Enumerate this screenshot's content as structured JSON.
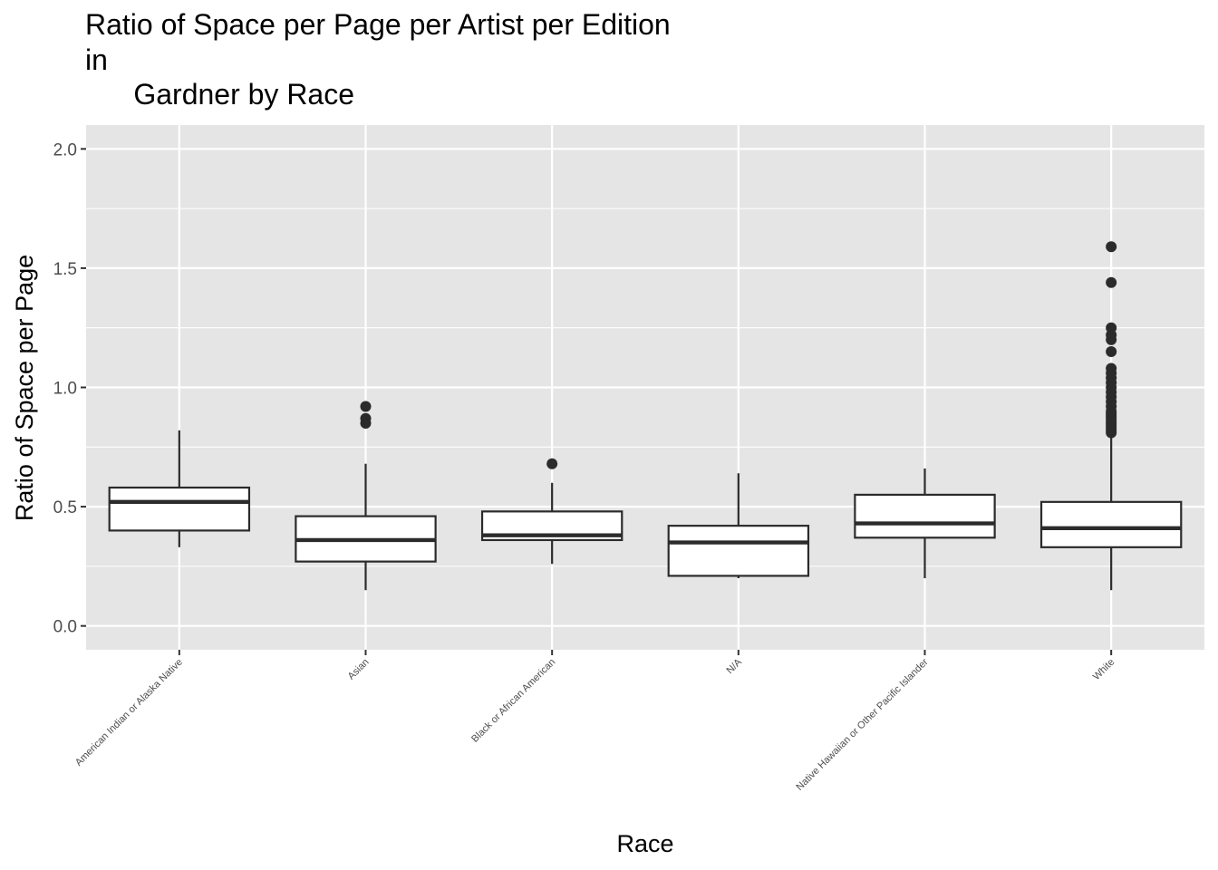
{
  "chart_data": {
    "type": "box",
    "title_lines": [
      "Ratio of Space per Page per Artist per Edition",
      "in",
      "      Gardner by Race"
    ],
    "xlabel": "Race",
    "ylabel": "Ratio of Space per Page",
    "ylim": [
      -0.1,
      2.1
    ],
    "yticks": [
      0.0,
      0.5,
      1.0,
      1.5,
      2.0
    ],
    "ytick_labels": [
      "0.0",
      "0.5",
      "1.0",
      "1.5",
      "2.0"
    ],
    "grid": true,
    "legend": "none",
    "colors": {
      "panel": "#e5e5e5",
      "grid": "#ffffff",
      "box_fill": "#ffffff",
      "box_line": "#2b2b2b",
      "tick_text": "#4d4d4d"
    },
    "categories": [
      "American Indian or Alaska Native",
      "Asian",
      "Black or African American",
      "N/A",
      "Native Hawaiian or Other Pacific Islander",
      "White"
    ],
    "boxes": [
      {
        "category": "American Indian or Alaska Native",
        "whisker_low": 0.33,
        "q1": 0.4,
        "median": 0.52,
        "q3": 0.58,
        "whisker_high": 0.82,
        "outliers": []
      },
      {
        "category": "Asian",
        "whisker_low": 0.15,
        "q1": 0.27,
        "median": 0.36,
        "q3": 0.46,
        "whisker_high": 0.68,
        "outliers": [
          0.85,
          0.87,
          0.92
        ]
      },
      {
        "category": "Black or African American",
        "whisker_low": 0.26,
        "q1": 0.36,
        "median": 0.38,
        "q3": 0.48,
        "whisker_high": 0.6,
        "outliers": [
          0.68
        ]
      },
      {
        "category": "N/A",
        "whisker_low": 0.2,
        "q1": 0.21,
        "median": 0.35,
        "q3": 0.42,
        "whisker_high": 0.64,
        "outliers": []
      },
      {
        "category": "Native Hawaiian or Other Pacific Islander",
        "whisker_low": 0.2,
        "q1": 0.37,
        "median": 0.43,
        "q3": 0.55,
        "whisker_high": 0.66,
        "outliers": []
      },
      {
        "category": "White",
        "whisker_low": 0.15,
        "q1": 0.33,
        "median": 0.41,
        "q3": 0.52,
        "whisker_high": 0.8,
        "outliers": [
          0.81,
          0.82,
          0.83,
          0.84,
          0.85,
          0.86,
          0.87,
          0.88,
          0.89,
          0.9,
          0.92,
          0.94,
          0.96,
          0.98,
          1.0,
          1.02,
          1.04,
          1.06,
          1.08,
          1.15,
          1.2,
          1.22,
          1.25,
          1.44,
          1.59
        ]
      }
    ]
  }
}
